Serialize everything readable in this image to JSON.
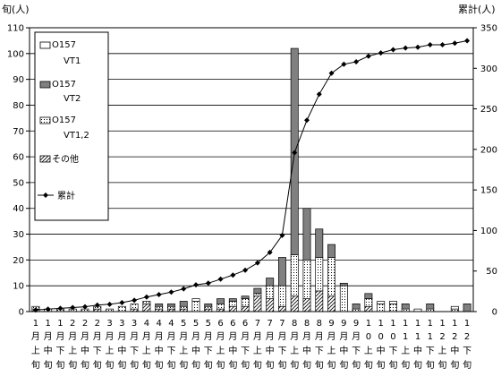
{
  "chart_data": {
    "type": "bar",
    "ylabel_left": "旬(人)",
    "ylabel_right": "累計(人)",
    "ylim_left": [
      0,
      110
    ],
    "yticks_left": [
      0,
      10,
      20,
      30,
      40,
      50,
      60,
      70,
      80,
      90,
      100,
      110
    ],
    "ylim_right": [
      0,
      350
    ],
    "yticks_right": [
      0,
      50,
      100,
      150,
      200,
      250,
      300,
      350
    ],
    "grid": true,
    "legend_position": "top-left",
    "categories": [
      [
        "1",
        "月",
        "上",
        "旬"
      ],
      [
        "1",
        "月",
        "中",
        "旬"
      ],
      [
        "1",
        "月",
        "下",
        "旬"
      ],
      [
        "2",
        "月",
        "上",
        "旬"
      ],
      [
        "2",
        "月",
        "中",
        "旬"
      ],
      [
        "2",
        "月",
        "下",
        "旬"
      ],
      [
        "3",
        "月",
        "上",
        "旬"
      ],
      [
        "3",
        "月",
        "中",
        "旬"
      ],
      [
        "3",
        "月",
        "下",
        "旬"
      ],
      [
        "4",
        "月",
        "上",
        "旬"
      ],
      [
        "4",
        "月",
        "中",
        "旬"
      ],
      [
        "4",
        "月",
        "下",
        "旬"
      ],
      [
        "5",
        "月",
        "上",
        "旬"
      ],
      [
        "5",
        "月",
        "中",
        "旬"
      ],
      [
        "5",
        "月",
        "下",
        "旬"
      ],
      [
        "6",
        "月",
        "上",
        "旬"
      ],
      [
        "6",
        "月",
        "中",
        "旬"
      ],
      [
        "6",
        "月",
        "下",
        "旬"
      ],
      [
        "7",
        "月",
        "上",
        "旬"
      ],
      [
        "7",
        "月",
        "中",
        "旬"
      ],
      [
        "7",
        "月",
        "下",
        "旬"
      ],
      [
        "8",
        "月",
        "上",
        "旬"
      ],
      [
        "8",
        "月",
        "中",
        "旬"
      ],
      [
        "8",
        "月",
        "下",
        "旬"
      ],
      [
        "9",
        "月",
        "上",
        "旬"
      ],
      [
        "9",
        "月",
        "中",
        "旬"
      ],
      [
        "9",
        "月",
        "下",
        "旬"
      ],
      [
        "1",
        "0",
        "上",
        "旬"
      ],
      [
        "1",
        "0",
        "中",
        "旬"
      ],
      [
        "1",
        "0",
        "下",
        "旬"
      ],
      [
        "1",
        "1",
        "上",
        "旬"
      ],
      [
        "1",
        "1",
        "中",
        "旬"
      ],
      [
        "1",
        "1",
        "下",
        "旬"
      ],
      [
        "1",
        "2",
        "上",
        "旬"
      ],
      [
        "1",
        "2",
        "中",
        "旬"
      ],
      [
        "1",
        "2",
        "下",
        "旬"
      ]
    ],
    "series": [
      {
        "name": "その他",
        "type": "bar-stacked",
        "pattern": "hatch",
        "values": [
          1,
          0,
          0,
          0,
          0,
          1,
          0,
          0,
          1,
          3,
          1,
          1,
          1,
          0,
          1,
          1,
          2,
          2,
          6,
          5,
          2,
          6,
          5,
          8,
          6,
          0,
          0,
          2,
          0,
          0,
          0,
          0,
          0,
          0,
          0,
          0
        ]
      },
      {
        "name": "O157 VT1,2",
        "type": "bar-stacked",
        "pattern": "dots",
        "values": [
          1,
          1,
          1,
          1,
          1,
          1,
          1,
          2,
          2,
          1,
          1,
          1,
          1,
          4,
          1,
          2,
          2,
          3,
          1,
          5,
          8,
          16,
          15,
          13,
          15,
          10,
          1,
          3,
          3,
          3,
          1,
          0,
          1,
          0,
          1,
          0
        ]
      },
      {
        "name": "O157 VT1",
        "type": "bar-stacked",
        "pattern": "white",
        "values": [
          0,
          0,
          0,
          0,
          0,
          0,
          0,
          0,
          0,
          0,
          0,
          0,
          0,
          1,
          0,
          0,
          0,
          0,
          0,
          0,
          0,
          0,
          0,
          0,
          0,
          0,
          0,
          0,
          1,
          1,
          0,
          1,
          0,
          0,
          1,
          0
        ]
      },
      {
        "name": "O157 VT2",
        "type": "bar-stacked",
        "pattern": "gray",
        "values": [
          0,
          0,
          0,
          0,
          0,
          0,
          0,
          0,
          0,
          0,
          1,
          1,
          2,
          0,
          1,
          2,
          1,
          1,
          2,
          3,
          11,
          80,
          20,
          11,
          5,
          1,
          2,
          2,
          0,
          0,
          2,
          0,
          2,
          0,
          0,
          3
        ]
      },
      {
        "name": "累計",
        "type": "line",
        "axis": "right",
        "marker": "diamond",
        "values": [
          2,
          3,
          4,
          5,
          6,
          8,
          9,
          11,
          14,
          18,
          21,
          24,
          28,
          33,
          35,
          40,
          45,
          51,
          60,
          73,
          94,
          196,
          236,
          268,
          294,
          305,
          308,
          315,
          319,
          323,
          325,
          326,
          329,
          329,
          331,
          334
        ]
      }
    ]
  }
}
